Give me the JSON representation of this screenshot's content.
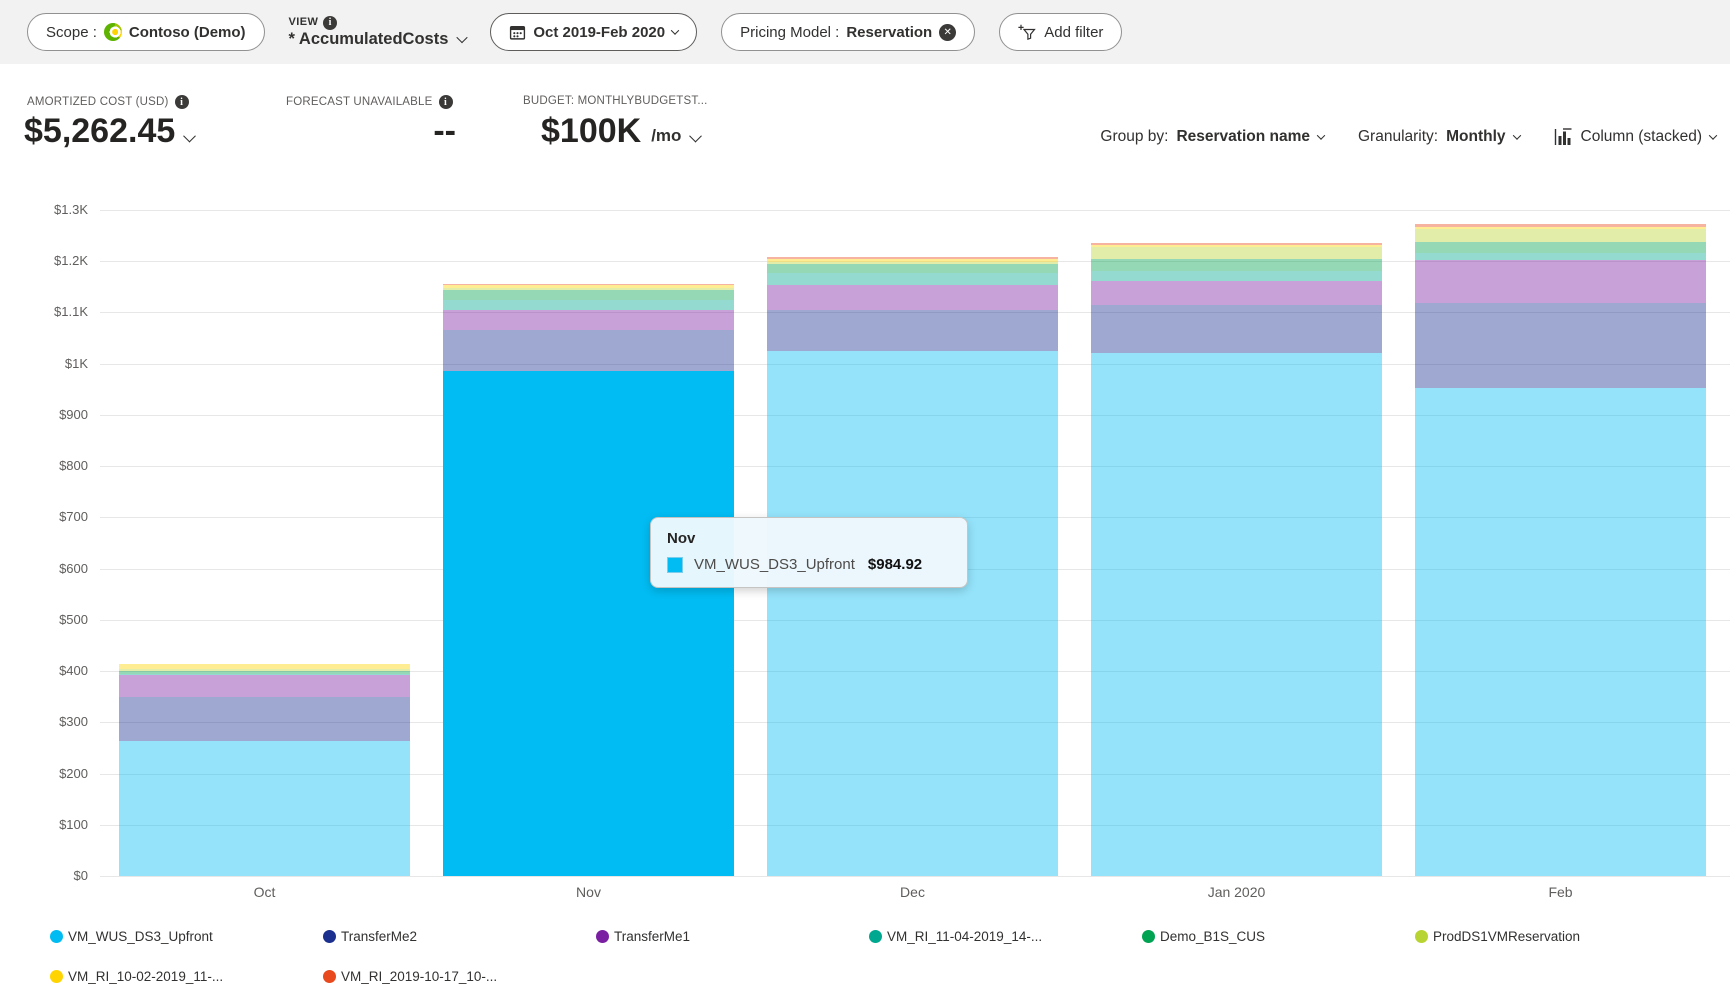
{
  "icons": {
    "info": "i",
    "close": "✕"
  },
  "toolbar": {
    "scope_label": "Scope :",
    "scope_value": "Contoso (Demo)",
    "view_label": "VIEW",
    "view_value": "* AccumulatedCosts",
    "date_range": "Oct 2019-Feb 2020",
    "filter_name": "Pricing Model :",
    "filter_value": "Reservation",
    "add_filter_label": "Add filter"
  },
  "kpis": {
    "amortized": {
      "label": "AMORTIZED COST (USD)",
      "value": "$5,262.45"
    },
    "forecast": {
      "label": "FORECAST UNAVAILABLE",
      "value": "--"
    },
    "budget": {
      "label": "BUDGET: MONTHLYBUDGETST...",
      "value": "$100K",
      "suffix": "/mo"
    }
  },
  "controls": {
    "group_by_label": "Group by:",
    "group_by_value": "Reservation name",
    "granularity_label": "Granularity:",
    "granularity_value": "Monthly",
    "chart_type": "Column (stacked)"
  },
  "tooltip": {
    "title": "Nov",
    "series": "VM_WUS_DS3_Upfront",
    "value": "$984.92",
    "color": "#00bcf2"
  },
  "chart_data": {
    "type": "bar",
    "stacked": true,
    "categories": [
      "Oct",
      "Nov",
      "Dec",
      "Jan 2020",
      "Feb"
    ],
    "series": [
      {
        "name": "VM_WUS_DS3_Upfront",
        "color": "#00bcf2",
        "values": [
          264,
          984.92,
          1025,
          1021,
          953
        ]
      },
      {
        "name": "TransferMe2",
        "color": "#1b2f8f",
        "values": [
          86,
          80,
          80,
          94,
          166
        ]
      },
      {
        "name": "TransferMe1",
        "color": "#7a1fa2",
        "values": [
          43,
          39,
          49,
          47,
          84
        ]
      },
      {
        "name": "VM_RI_11-04-2019_14-...",
        "color": "#00a88f",
        "values": [
          2,
          20,
          23,
          18,
          14
        ]
      },
      {
        "name": "Demo_B1S_CUS",
        "color": "#00a352",
        "values": [
          6,
          20,
          18,
          25,
          20
        ]
      },
      {
        "name": "ProdDS1VMReservation",
        "color": "#b8d432",
        "values": [
          4,
          3,
          3,
          22,
          25
        ]
      },
      {
        "name": "VM_RI_10-02-2019_11-...",
        "color": "#ffd400",
        "values": [
          8,
          6,
          6,
          4,
          4
        ]
      },
      {
        "name": "VM_RI_2019-10-17_10-...",
        "color": "#e8491d",
        "values": [
          0,
          3,
          5,
          5,
          6
        ]
      }
    ],
    "ylabel_format": "usd",
    "ylim": [
      0,
      1300
    ],
    "ytick_step": 100,
    "grid": true,
    "legend_position": "bottom",
    "highlight": {
      "category": "Nov",
      "series": "VM_WUS_DS3_Upfront"
    },
    "faded_opacity": 0.42
  }
}
